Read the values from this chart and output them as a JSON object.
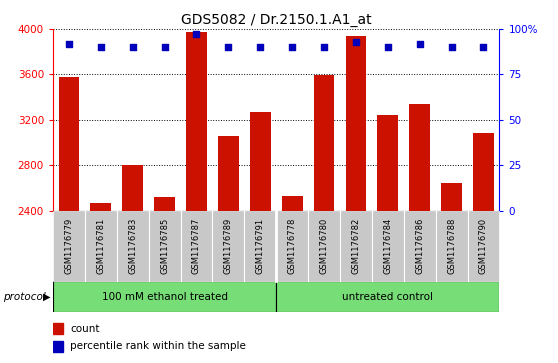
{
  "title": "GDS5082 / Dr.2150.1.A1_at",
  "samples": [
    "GSM1176779",
    "GSM1176781",
    "GSM1176783",
    "GSM1176785",
    "GSM1176787",
    "GSM1176789",
    "GSM1176791",
    "GSM1176778",
    "GSM1176780",
    "GSM1176782",
    "GSM1176784",
    "GSM1176786",
    "GSM1176788",
    "GSM1176790"
  ],
  "counts": [
    3575,
    2470,
    2805,
    2520,
    3975,
    3055,
    3265,
    2530,
    3595,
    3935,
    3240,
    3340,
    2640,
    3080
  ],
  "percentiles": [
    92,
    90,
    90,
    90,
    97,
    90,
    90,
    90,
    90,
    93,
    90,
    92,
    90,
    90
  ],
  "group1_count": 7,
  "group1_label": "100 mM ethanol treated",
  "group2_label": "untreated control",
  "group_color": "#77DD77",
  "ylim_left": [
    2400,
    4000
  ],
  "ylim_right": [
    0,
    100
  ],
  "yticks_left": [
    2400,
    2800,
    3200,
    3600,
    4000
  ],
  "yticks_right": [
    0,
    25,
    50,
    75,
    100
  ],
  "bar_color": "#CC1100",
  "dot_color": "#0000BB",
  "bar_bottom": 2400,
  "xtick_bg": "#C8C8C8",
  "plot_bg": "#FFFFFF",
  "protocol_label": "protocol",
  "legend_count_label": "count",
  "legend_pct_label": "percentile rank within the sample"
}
